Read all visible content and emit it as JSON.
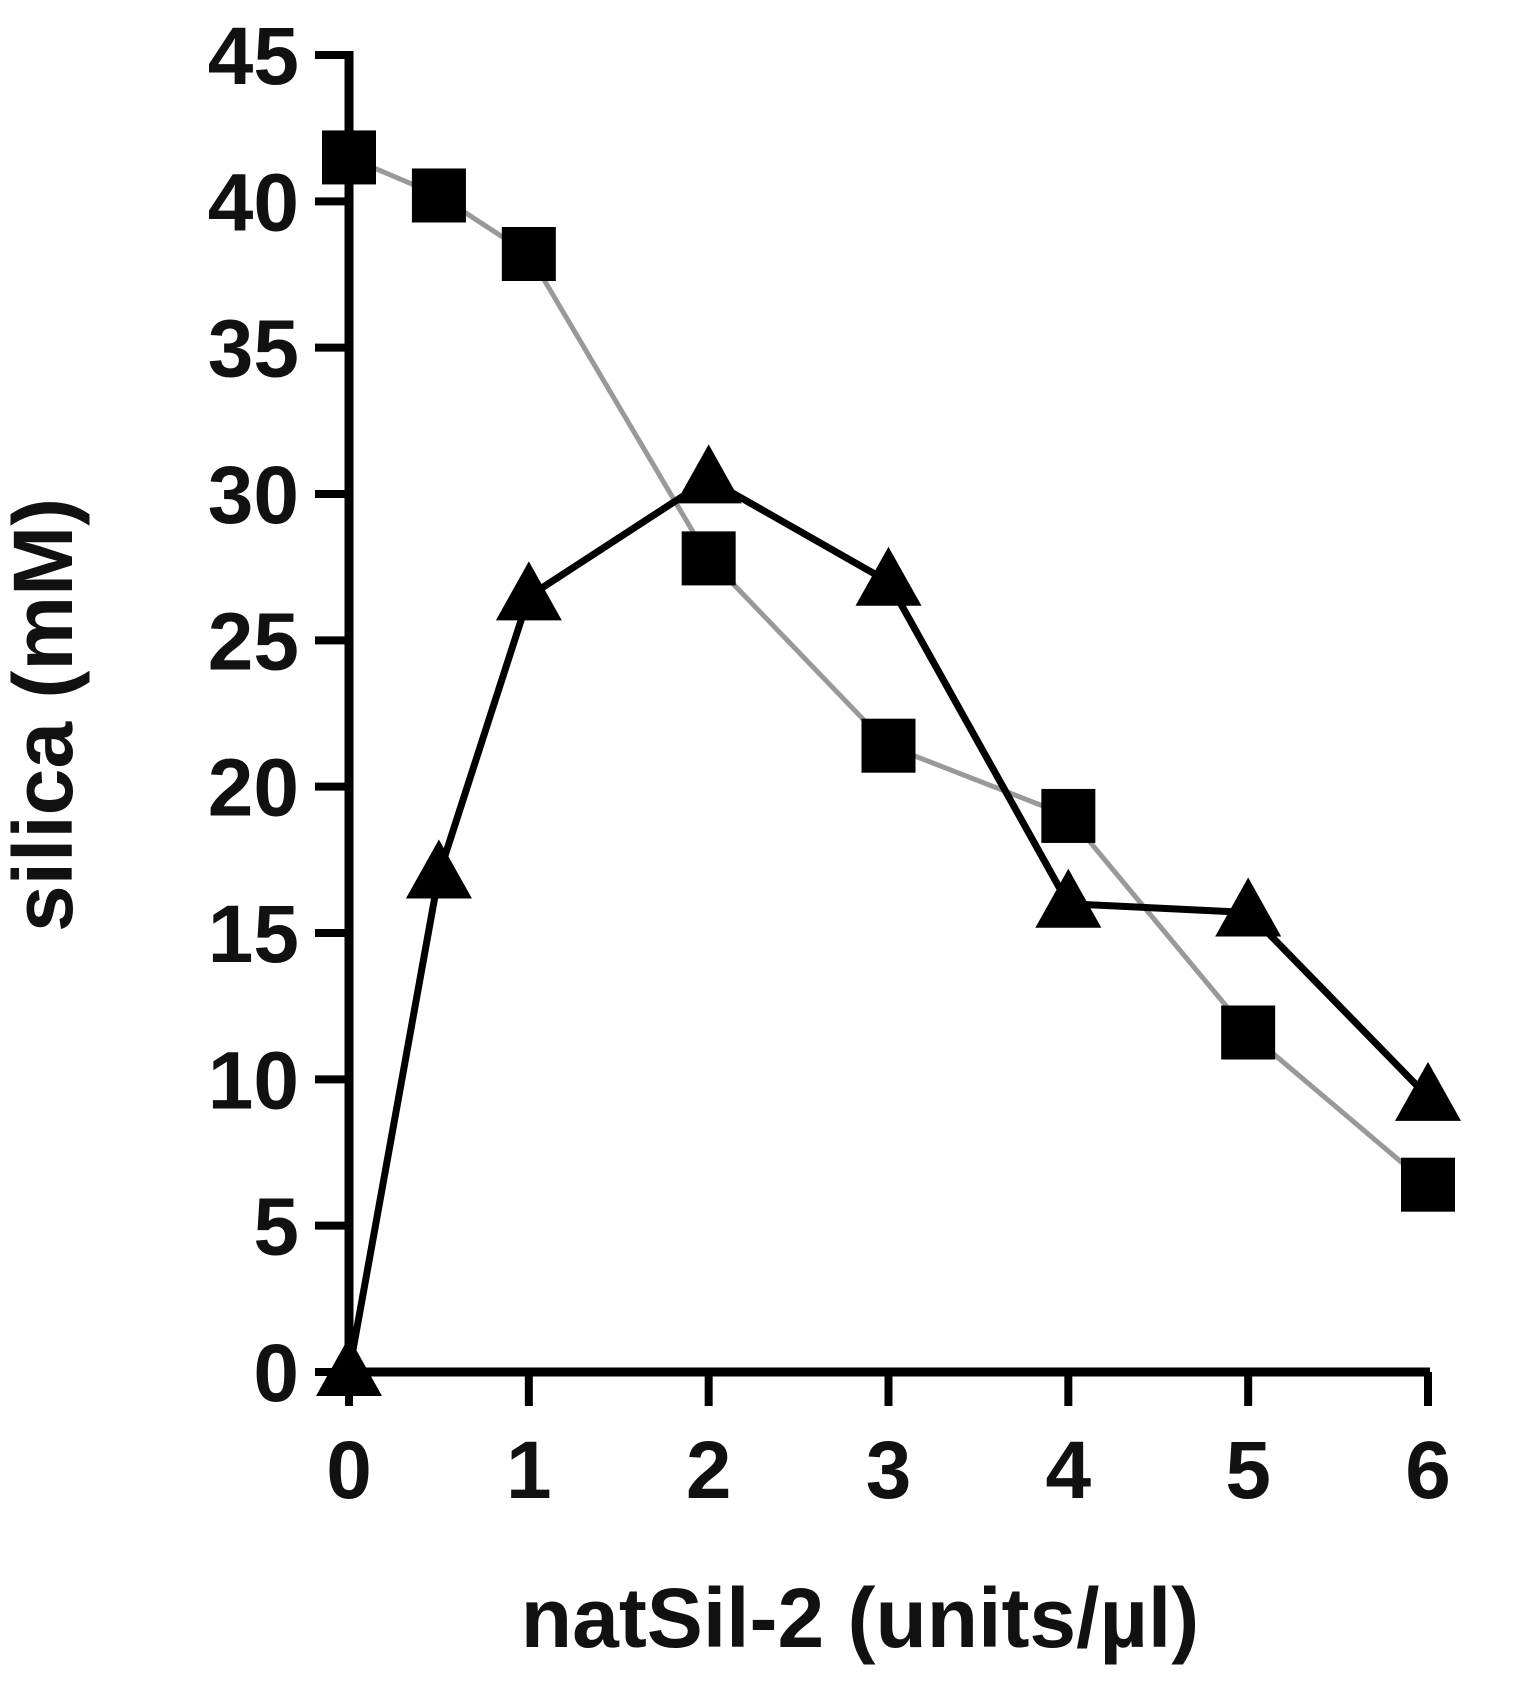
{
  "chart_data": {
    "type": "line",
    "title": "",
    "xlabel": "natSil-2 (units/µl)",
    "ylabel": "silica (mM)",
    "xlim": [
      0,
      6
    ],
    "ylim": [
      0,
      45
    ],
    "xticks": [
      0,
      1,
      2,
      3,
      4,
      5,
      6
    ],
    "yticks": [
      0,
      5,
      10,
      15,
      20,
      25,
      30,
      35,
      40,
      45
    ],
    "grid": false,
    "legend": "none",
    "series": [
      {
        "marker": "square",
        "line_color": "#999999",
        "marker_color": "#000000",
        "x": [
          0,
          0.5,
          1,
          2,
          3,
          4,
          5,
          6
        ],
        "y": [
          41.5,
          40.2,
          38.2,
          27.8,
          21.4,
          19.0,
          11.6,
          6.4
        ]
      },
      {
        "marker": "triangle",
        "line_color": "#000000",
        "marker_color": "#000000",
        "x": [
          0,
          0.5,
          1,
          2,
          3,
          4,
          5,
          6
        ],
        "y": [
          0,
          17.0,
          26.5,
          30.5,
          27.0,
          16.0,
          15.7,
          9.4
        ]
      }
    ]
  }
}
